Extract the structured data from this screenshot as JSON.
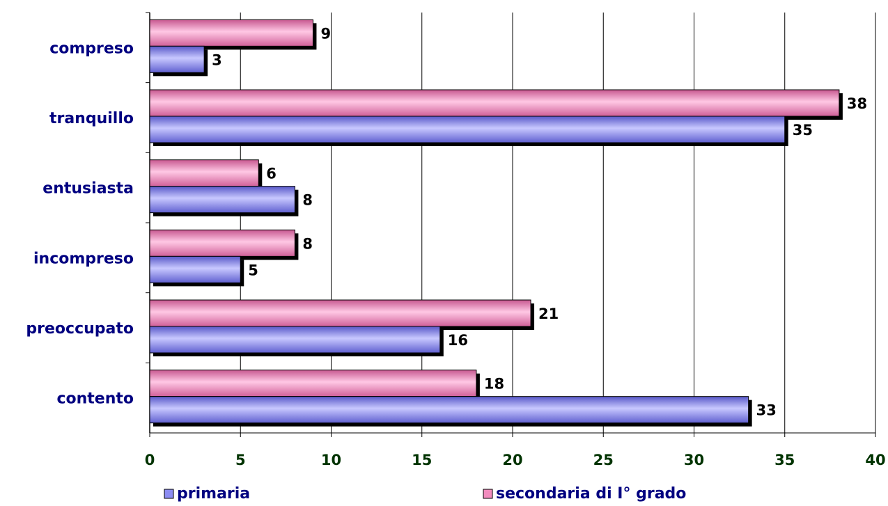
{
  "chart_data": {
    "type": "bar",
    "orientation": "horizontal",
    "categories": [
      "contento",
      "preoccupato",
      "incompreso",
      "entusiasta",
      "tranquillo",
      "compreso"
    ],
    "series": [
      {
        "name": "primaria",
        "color": "#8c8cf2",
        "values": [
          33,
          16,
          5,
          8,
          35,
          3
        ]
      },
      {
        "name": "secondaria di I° grado",
        "color": "#f28cbe",
        "values": [
          18,
          21,
          8,
          6,
          38,
          9
        ]
      }
    ],
    "xlim": [
      0,
      40
    ],
    "xticks": [
      0,
      5,
      10,
      15,
      20,
      25,
      30,
      35,
      40
    ],
    "grid": "vertical",
    "legend": "bottom",
    "data_labels": true,
    "title": "",
    "xlabel": "",
    "ylabel": ""
  }
}
